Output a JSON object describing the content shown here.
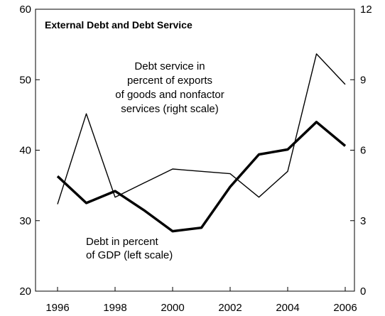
{
  "chart_data": {
    "type": "line",
    "title": "External Debt and Debt Service",
    "x": [
      1996,
      1997,
      1998,
      1999,
      2000,
      2001,
      2002,
      2003,
      2004,
      2005,
      2006
    ],
    "x_ticks": [
      "1996",
      "1998",
      "2000",
      "2002",
      "2004",
      "2006"
    ],
    "left_axis": {
      "ylim": [
        20,
        60
      ],
      "ticks": [
        "20",
        "30",
        "40",
        "50",
        "60"
      ]
    },
    "right_axis": {
      "ylim": [
        0,
        12
      ],
      "ticks": [
        "0",
        "3",
        "6",
        "9",
        "12"
      ]
    },
    "grid": false,
    "series": [
      {
        "name_lines": [
          "Debt in percent",
          "of GDP (left scale)"
        ],
        "axis": "left",
        "emphasis": "thick",
        "values": [
          36.3,
          32.5,
          34.2,
          31.5,
          28.5,
          29.0,
          34.8,
          39.4,
          40.1,
          44.0,
          40.6
        ]
      },
      {
        "name_lines": [
          "Debt service in",
          "percent of exports",
          "of goods and nonfactor",
          "services (right scale)"
        ],
        "axis": "right",
        "emphasis": "thin",
        "values": [
          3.7,
          7.55,
          4.0,
          4.6,
          5.2,
          5.1,
          5.0,
          4.0,
          5.1,
          10.1,
          8.8
        ]
      }
    ]
  }
}
